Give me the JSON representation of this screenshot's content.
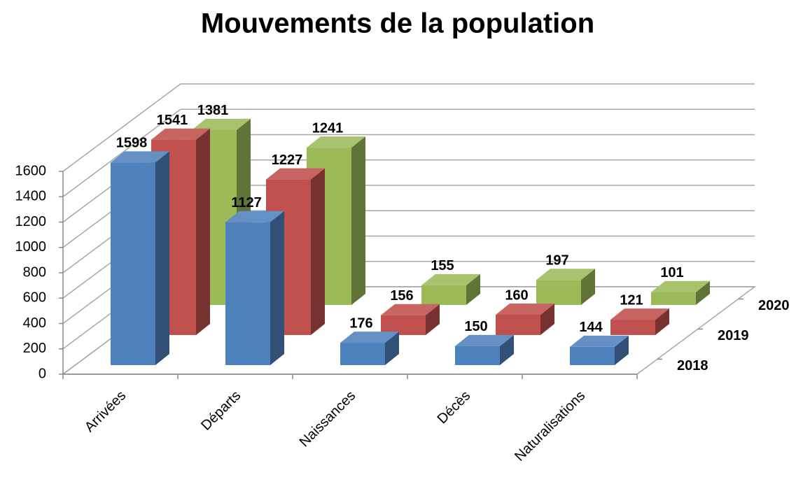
{
  "chart_data": {
    "type": "bar3d",
    "title": "Mouvements de la population",
    "categories": [
      "Arrivées",
      "Départs",
      "Naissances",
      "Décès",
      "Naturalisations"
    ],
    "series": [
      {
        "name": "2018",
        "color": "#4f81bd",
        "values": [
          1598,
          1127,
          176,
          150,
          144
        ]
      },
      {
        "name": "2019",
        "color": "#c0504d",
        "values": [
          1541,
          1227,
          156,
          160,
          121
        ]
      },
      {
        "name": "2020",
        "color": "#9bbb59",
        "values": [
          1381,
          1241,
          155,
          197,
          101
        ]
      }
    ],
    "ylim": [
      0,
      1600
    ],
    "yticks": [
      0,
      200,
      400,
      600,
      800,
      1000,
      1200,
      1400,
      1600
    ],
    "grid": true
  }
}
